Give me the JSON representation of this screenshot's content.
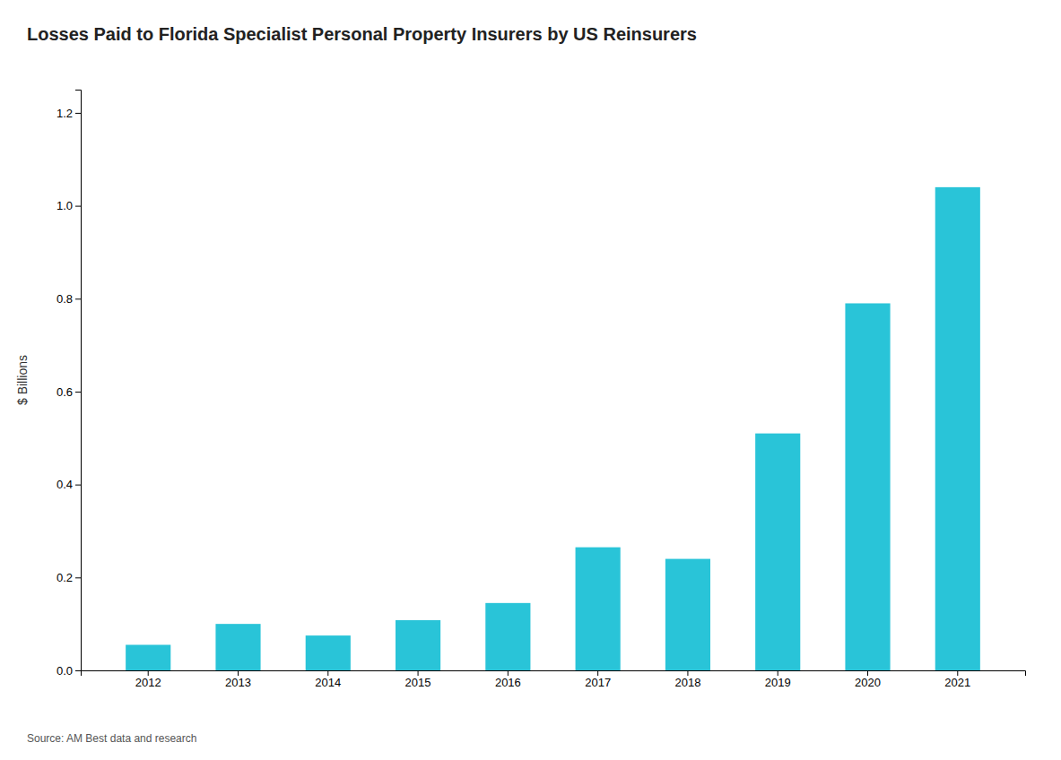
{
  "chart_data": {
    "type": "bar",
    "title": "Losses Paid to Florida Specialist Personal Property Insurers by US Reinsurers",
    "ylabel": "$ Billions",
    "source": "Source: AM Best data and research",
    "categories": [
      "2012",
      "2013",
      "2014",
      "2015",
      "2016",
      "2017",
      "2018",
      "2019",
      "2020",
      "2021"
    ],
    "values": [
      0.055,
      0.1,
      0.075,
      0.108,
      0.145,
      0.265,
      0.24,
      0.51,
      0.79,
      1.04
    ],
    "color": "#29C4D8",
    "ylim": [
      0,
      1.25
    ],
    "yticks": [
      {
        "value": 0,
        "label": "0.0"
      },
      0.2,
      0.4,
      0.6,
      0.8,
      {
        "value": 1,
        "label": "1.0"
      },
      1.2
    ],
    "grid": false
  }
}
